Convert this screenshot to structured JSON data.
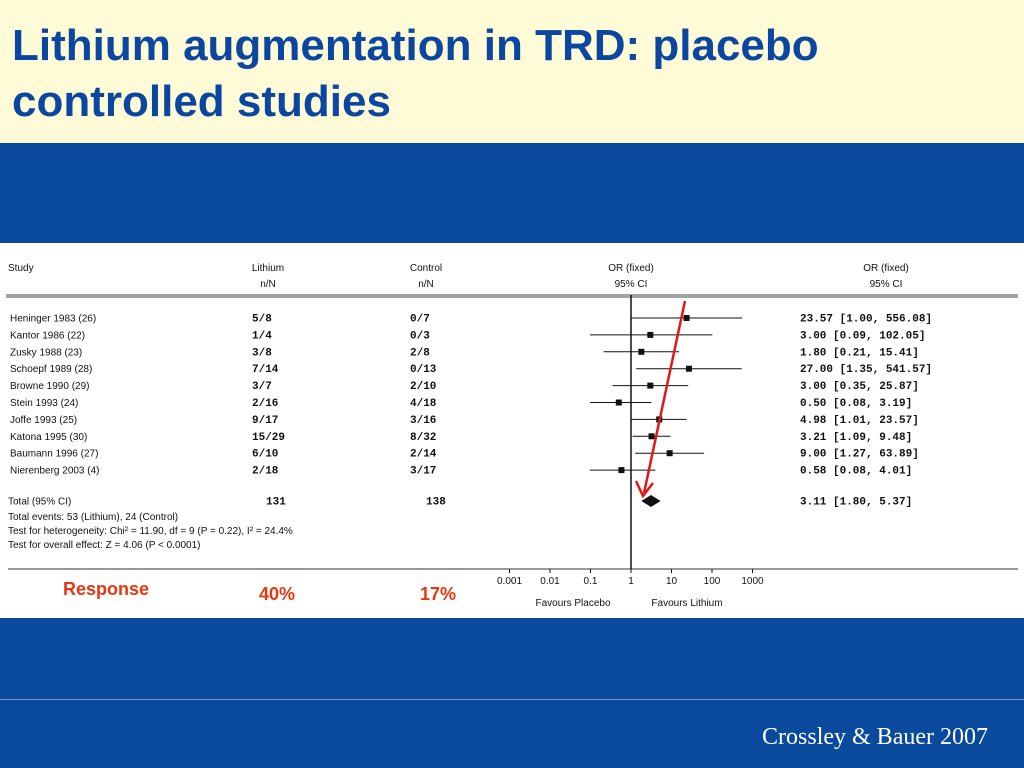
{
  "slide": {
    "title_line1": "Lithium augmentation in TRD: placebo",
    "title_line2": "controlled studies",
    "citation": "Crossley & Bauer 2007"
  },
  "colors": {
    "title": "#0b47a1",
    "background_blue": "#0a4a9c",
    "title_band": "#fffbd6",
    "annotation": "#e8360e"
  },
  "chart_data": {
    "type": "forest",
    "scale": "log",
    "x_ticks": [
      0.001,
      0.01,
      0.1,
      1,
      10,
      100,
      1000
    ],
    "x_tick_labels": [
      "0.001",
      "0.01",
      "0.1",
      "1",
      "10",
      "100",
      "1000"
    ],
    "headers": {
      "study": "Study",
      "lithium": [
        "Lithium",
        "n/N"
      ],
      "control": [
        "Control",
        "n/N"
      ],
      "or_plot": [
        "OR (fixed)",
        "95% CI"
      ],
      "or_text": [
        "OR (fixed)",
        "95% CI"
      ]
    },
    "studies": [
      {
        "name": "Heninger 1983 (26)",
        "lithium": "5/8",
        "control": "0/7",
        "or": 23.57,
        "lo": 1.0,
        "hi": 556.08,
        "or_text": "23.57 [1.00, 556.08]"
      },
      {
        "name": "Kantor 1986 (22)",
        "lithium": "1/4",
        "control": "0/3",
        "or": 3.0,
        "lo": 0.09,
        "hi": 102.05,
        "or_text": "3.00 [0.09, 102.05]"
      },
      {
        "name": "Zusky 1988 (23)",
        "lithium": "3/8",
        "control": "2/8",
        "or": 1.8,
        "lo": 0.21,
        "hi": 15.41,
        "or_text": "1.80 [0.21, 15.41]"
      },
      {
        "name": "Schoepf 1989 (28)",
        "lithium": "7/14",
        "control": "0/13",
        "or": 27.0,
        "lo": 1.35,
        "hi": 541.57,
        "or_text": "27.00 [1.35, 541.57]"
      },
      {
        "name": "Browne 1990 (29)",
        "lithium": "3/7",
        "control": "2/10",
        "or": 3.0,
        "lo": 0.35,
        "hi": 25.87,
        "or_text": "3.00 [0.35, 25.87]"
      },
      {
        "name": "Stein 1993 (24)",
        "lithium": "2/16",
        "control": "4/18",
        "or": 0.5,
        "lo": 0.08,
        "hi": 3.19,
        "or_text": "0.50 [0.08, 3.19]"
      },
      {
        "name": "Joffe 1993 (25)",
        "lithium": "9/17",
        "control": "3/16",
        "or": 4.98,
        "lo": 1.01,
        "hi": 23.57,
        "or_text": "4.98 [1.01, 23.57]"
      },
      {
        "name": "Katona 1995 (30)",
        "lithium": "15/29",
        "control": "8/32",
        "or": 3.21,
        "lo": 1.09,
        "hi": 9.48,
        "or_text": "3.21 [1.09, 9.48]"
      },
      {
        "name": "Baumann 1996 (27)",
        "lithium": "6/10",
        "control": "2/14",
        "or": 9.0,
        "lo": 1.27,
        "hi": 63.89,
        "or_text": "9.00 [1.27, 63.89]"
      },
      {
        "name": "Nierenberg 2003 (4)",
        "lithium": "2/18",
        "control": "3/17",
        "or": 0.58,
        "lo": 0.08,
        "hi": 4.01,
        "or_text": "0.58 [0.08, 4.01]"
      }
    ],
    "total": {
      "name": "Total (95% CI)",
      "lithium": "131",
      "control": "138",
      "or": 3.11,
      "lo": 1.8,
      "hi": 5.37,
      "or_text": "3.11 [1.80, 5.37]"
    },
    "footnotes": [
      "Total events: 53 (Lithium), 24 (Control)",
      "Test for heterogeneity: Chi² = 11.90, df = 9 (P = 0.22), I² = 24.4%",
      "Test for overall effect: Z = 4.06 (P < 0.0001)"
    ],
    "favours_left": "Favours Placebo",
    "favours_right": "Favours Lithium",
    "annotations": {
      "response_label": "Response",
      "lithium_pct": "40%",
      "control_pct": "17%"
    }
  }
}
